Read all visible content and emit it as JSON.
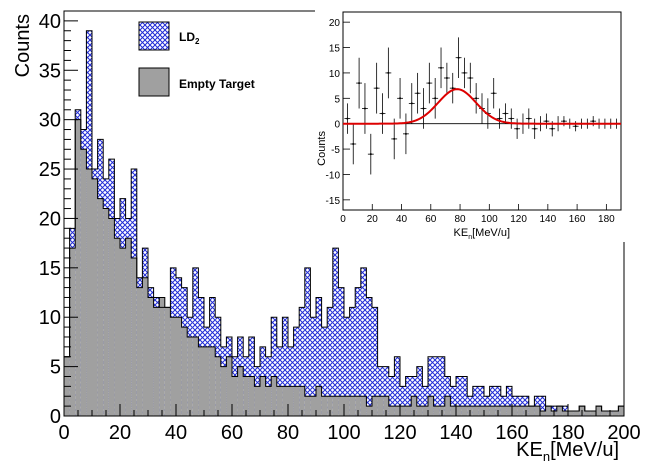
{
  "chart_data": [
    {
      "type": "bar",
      "subtype": "histogram",
      "xlabel": "KE",
      "xlabel_subscript": "n",
      "xlabel_unit": "[MeV/u]",
      "ylabel": "Counts",
      "xlim": [
        0,
        200
      ],
      "ylim": [
        0,
        41
      ],
      "bin_width": 2,
      "x_ticks": [
        0,
        20,
        40,
        60,
        80,
        100,
        120,
        140,
        160,
        180,
        200
      ],
      "y_ticks": [
        0,
        5,
        10,
        15,
        20,
        25,
        30,
        35,
        40
      ],
      "legend": {
        "position": "top-left"
      },
      "series": [
        {
          "name": "LD",
          "name_subscript": "2",
          "style": "hatched",
          "color": "#1f2bd6",
          "values": [
            6,
            19,
            31,
            29,
            39,
            25,
            28,
            24,
            26,
            20,
            22,
            20,
            25,
            14,
            17,
            13,
            12,
            11,
            11,
            15,
            14,
            13,
            10,
            15,
            12,
            9,
            12,
            10,
            7,
            8,
            6,
            8,
            6,
            8,
            5,
            7,
            6,
            10,
            7,
            10,
            7,
            9,
            11,
            15,
            10,
            12,
            9,
            11,
            17,
            13,
            10,
            11,
            13,
            15,
            12,
            11,
            5,
            5,
            4,
            6,
            3,
            4,
            4,
            5,
            3,
            6,
            6,
            6,
            4,
            3,
            4,
            4,
            2,
            3,
            3,
            2,
            3,
            3,
            2,
            3,
            2,
            2,
            2,
            1,
            2,
            2,
            1,
            1,
            1,
            1,
            0.5,
            0.5,
            1,
            0.5,
            0.5,
            1,
            0.5,
            0.5,
            0.5,
            1
          ]
        },
        {
          "name": "Empty Target",
          "style": "filled",
          "color": "#a0a0a0",
          "values": [
            6,
            17,
            30,
            27,
            25,
            24,
            22,
            21,
            20,
            18,
            17,
            18,
            16,
            13,
            14,
            12,
            11,
            12,
            11,
            10,
            10,
            9,
            8,
            8,
            7,
            7,
            7,
            6,
            5,
            6,
            4,
            5,
            4,
            4,
            3,
            4,
            3,
            4,
            3,
            3,
            3,
            3,
            3,
            2,
            2,
            3,
            2,
            2,
            2,
            2,
            2,
            2,
            2,
            2,
            1,
            2,
            2,
            2,
            1,
            1,
            1,
            1,
            2,
            1,
            1,
            2,
            1,
            1,
            2,
            1,
            1,
            1,
            1,
            1,
            1,
            1,
            1,
            1,
            1,
            1,
            1,
            1,
            1,
            1,
            1,
            0.5,
            1,
            0.5,
            1,
            0.5,
            0.5,
            0.5,
            1,
            0.5,
            0.5,
            1,
            0.5,
            0.5,
            0.5,
            1
          ]
        }
      ]
    },
    {
      "type": "scatter",
      "placement": "inset, top-right",
      "xlabel": "KE",
      "xlabel_subscript": "n",
      "xlabel_unit": "[MeV/u]",
      "ylabel": "Counts",
      "xlim": [
        0,
        190
      ],
      "ylim": [
        -17,
        22
      ],
      "x_ticks": [
        0,
        20,
        40,
        60,
        80,
        100,
        120,
        140,
        160,
        180
      ],
      "y_ticks": [
        -15,
        -10,
        -5,
        0,
        5,
        10,
        15,
        20
      ],
      "points": {
        "x": [
          3,
          7,
          11,
          15,
          19,
          23,
          27,
          31,
          35,
          39,
          43,
          47,
          51,
          55,
          59,
          63,
          67,
          71,
          75,
          79,
          83,
          87,
          91,
          95,
          99,
          103,
          107,
          111,
          115,
          119,
          123,
          127,
          131,
          135,
          139,
          143,
          147,
          151,
          155,
          159,
          163,
          167,
          171,
          175,
          179,
          183,
          187
        ],
        "y": [
          1,
          -4,
          8,
          3,
          -6,
          7,
          2,
          10,
          -3,
          5,
          -2,
          4,
          6,
          3,
          8,
          5,
          11,
          9,
          7,
          13,
          10,
          9,
          5,
          3,
          2,
          6,
          1,
          2,
          1,
          -1,
          0,
          1,
          -1,
          0,
          0.5,
          -1,
          0,
          0.5,
          0,
          -0.5,
          0,
          0,
          0.5,
          0,
          0,
          0,
          0
        ],
        "yerr": [
          3,
          4,
          5,
          5,
          4,
          5,
          4,
          5,
          4,
          4,
          4,
          4,
          4,
          4,
          4,
          4,
          4,
          3,
          3,
          4,
          3,
          3,
          3,
          3,
          3,
          3,
          2,
          2,
          2,
          2,
          2,
          2,
          2,
          1.5,
          1.5,
          1.5,
          1.5,
          1,
          1,
          1,
          1,
          1,
          1,
          1,
          1,
          1,
          1
        ]
      },
      "fit": {
        "type": "gaussian",
        "color": "#dd0000",
        "amplitude": 6.8,
        "mean": 78,
        "sigma": 13
      }
    }
  ]
}
